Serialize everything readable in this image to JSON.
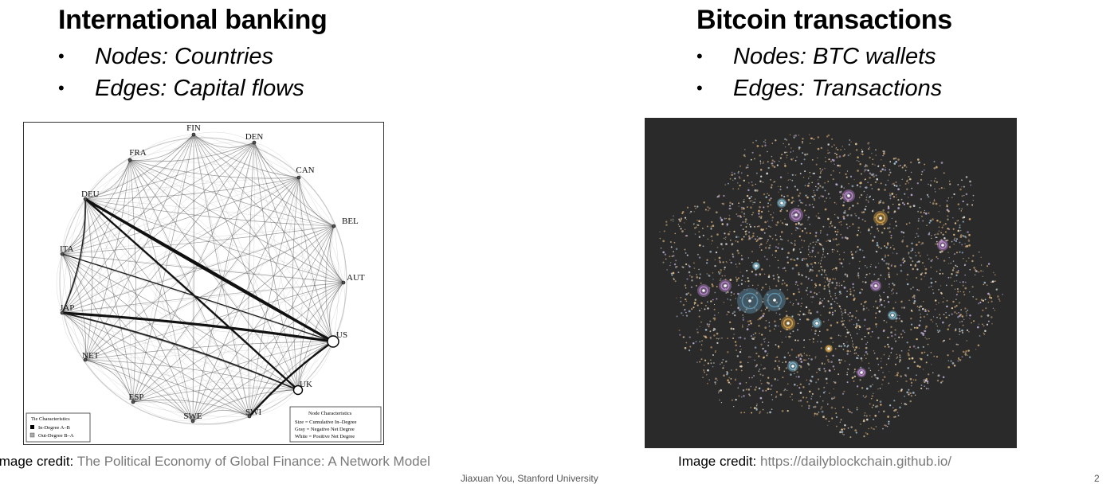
{
  "left": {
    "title": "International banking",
    "bullets": [
      "Nodes: Countries",
      "Edges: Capital flows"
    ],
    "figure": {
      "nodes": [
        "FIN",
        "DEN",
        "CAN",
        "BEL",
        "AUT",
        "US",
        "UK",
        "SWI",
        "SWE",
        "ESP",
        "NET",
        "JAP",
        "ITA",
        "DEU",
        "FRA"
      ],
      "legend_left": {
        "title": "Tie Characteristics",
        "items": [
          "In-Degree A–B",
          "Out-Degree B–A"
        ]
      },
      "legend_right": {
        "title": "Node Characteristics",
        "items": [
          "Size = Cumulative In–Degree",
          "Gray = Negative Net Degree",
          "White = Positive Net Degree"
        ]
      }
    },
    "credit_label": "Image credit:",
    "credit_source": "The Political Economy of Global Finance: A Network Model"
  },
  "right": {
    "title": "Bitcoin transactions",
    "bullets": [
      "Nodes: BTC wallets",
      "Edges: Transactions"
    ],
    "credit_label": "Image credit:",
    "credit_source": "https://dailyblockchain.github.io/"
  },
  "footer": {
    "author": "Jiaxuan You, Stanford University",
    "page": "2"
  },
  "colors": {
    "bitcoin_bg": "#2a2a2a",
    "edge": "#222222",
    "credit_gray": "#7a7a7a"
  }
}
